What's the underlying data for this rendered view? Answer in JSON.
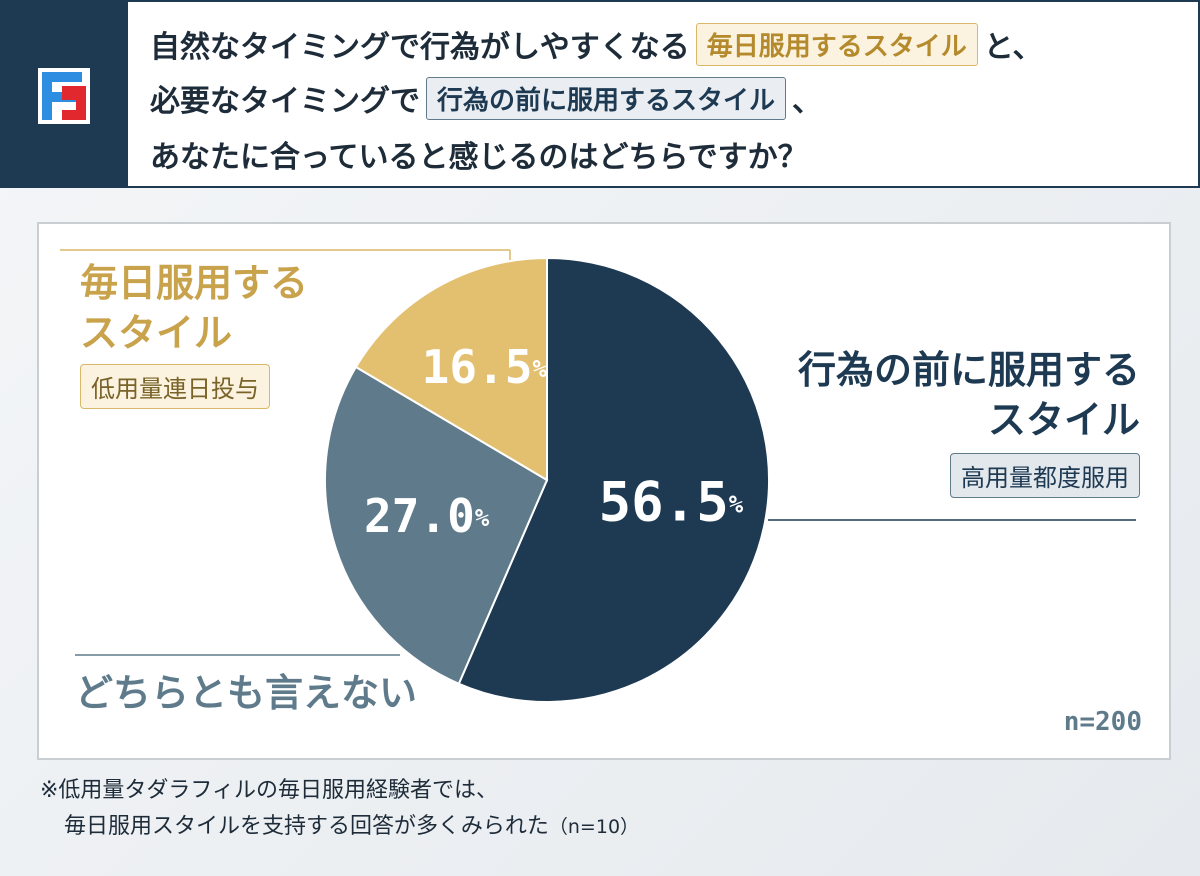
{
  "chart_data": {
    "type": "pie",
    "title_lines": [
      [
        "自然なタイミングで行為がしやすくなる",
        "毎日服用するスタイル",
        "と、"
      ],
      [
        "必要なタイミングで",
        "行為の前に服用するスタイル",
        "、"
      ],
      [
        "あなたに合っていると感じるのはどちらですか？"
      ]
    ],
    "categories": [
      "行為の前に服用するスタイル",
      "どちらとも言えない",
      "毎日服用するスタイル"
    ],
    "values": [
      56.5,
      27.0,
      16.5
    ],
    "value_labels": [
      "56.5%",
      "27.0%",
      "16.5%"
    ],
    "sub_labels": [
      "高用量都度服用",
      null,
      "低用量連日投与"
    ],
    "colors": [
      "#1e3a52",
      "#5f7b8b",
      "#e3c06f"
    ],
    "label_colors": [
      "#1e3a52",
      "#5f7b8b",
      "#c9a24c"
    ],
    "sample_size": "n=200",
    "footnote": [
      "※低用量タダラフィルの毎日服用経験者では、",
      "毎日服用スタイルを支持する回答が多くみられた",
      "（n=10）"
    ]
  }
}
